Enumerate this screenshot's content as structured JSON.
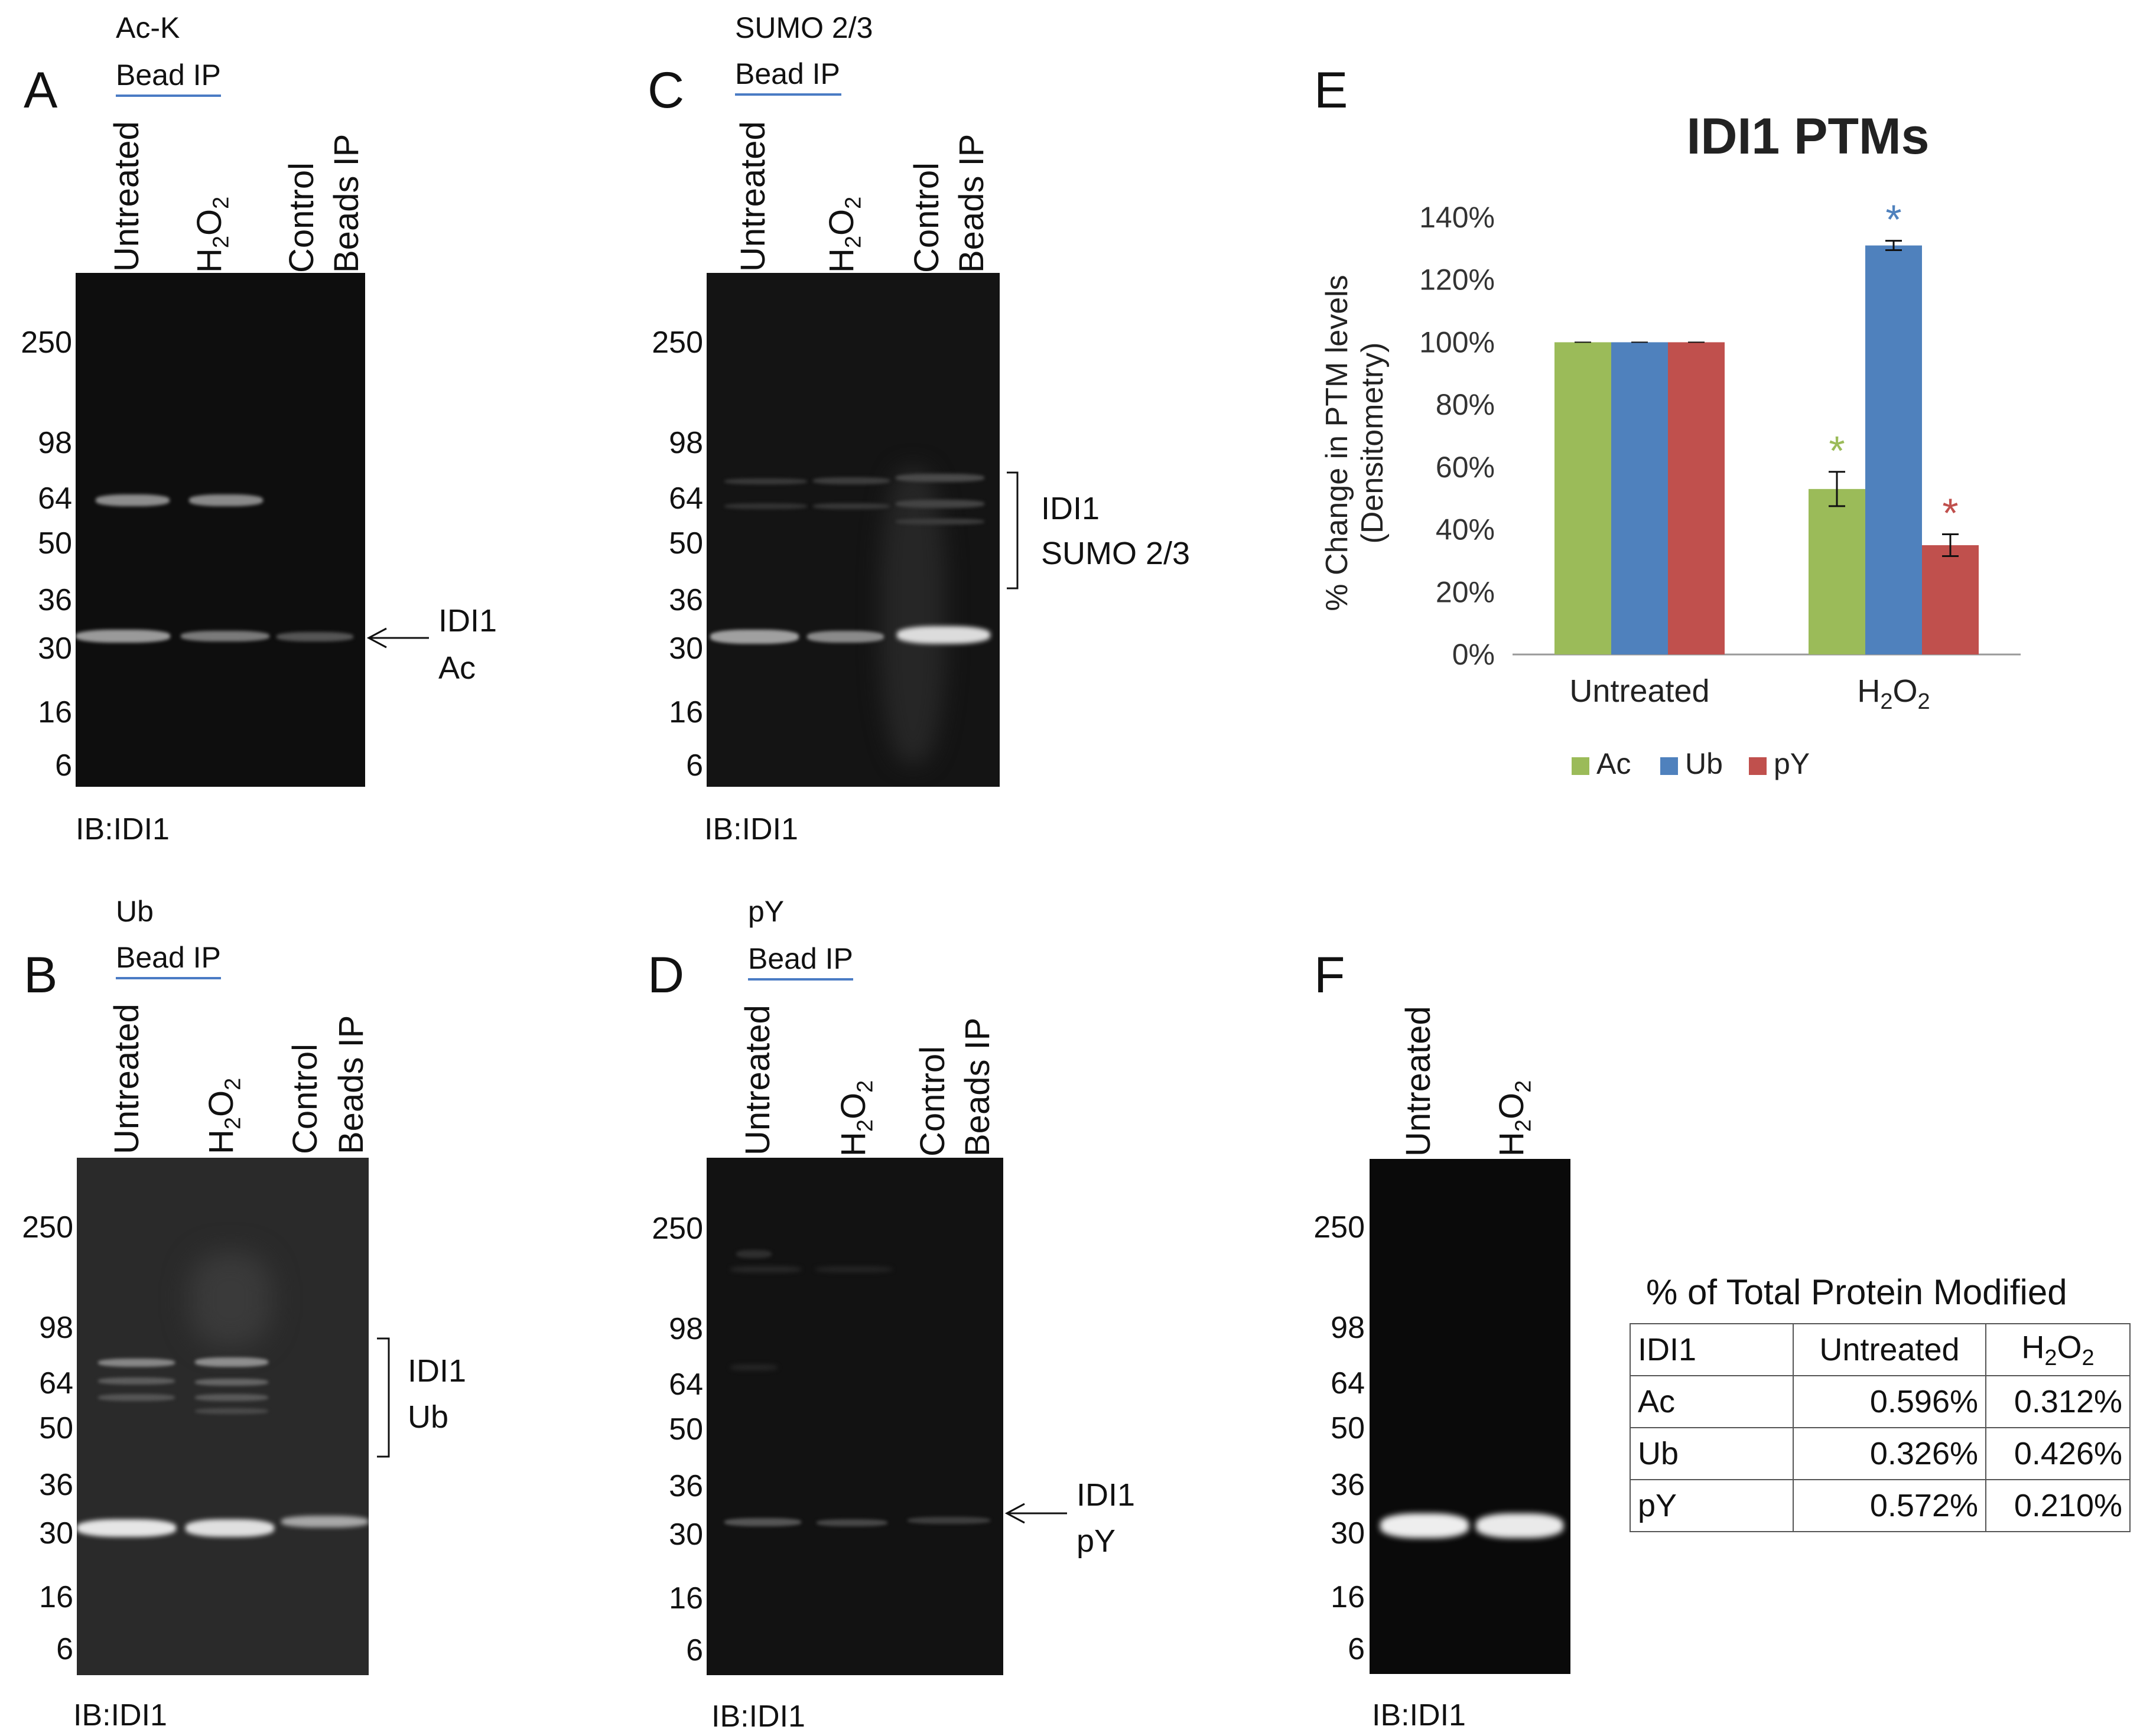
{
  "panels": {
    "A": {
      "letter": "A",
      "ip_line1": "Ac-K",
      "ip_line2": "Bead IP",
      "lanes": [
        "Untreated",
        "H2O2",
        "Control",
        "Beads IP"
      ],
      "mw": [
        "250",
        "98",
        "64",
        "50",
        "36",
        "30",
        "16",
        "6"
      ],
      "ib": "IB:IDI1",
      "ann1": "IDI1",
      "ann2": "Ac"
    },
    "B": {
      "letter": "B",
      "ip_line1": "Ub",
      "ip_line2": "Bead IP",
      "lanes": [
        "Untreated",
        "H2O2",
        "Control",
        "Beads IP"
      ],
      "mw": [
        "250",
        "98",
        "64",
        "50",
        "36",
        "30",
        "16",
        "6"
      ],
      "ib": "IB:IDI1",
      "ann1": "IDI1",
      "ann2": "Ub"
    },
    "C": {
      "letter": "C",
      "ip_line1": "SUMO 2/3",
      "ip_line2": "Bead IP",
      "lanes": [
        "Untreated",
        "H2O2",
        "Control",
        "Beads IP"
      ],
      "mw": [
        "250",
        "98",
        "64",
        "50",
        "36",
        "30",
        "16",
        "6"
      ],
      "ib": "IB:IDI1",
      "ann1": "IDI1",
      "ann2": "SUMO 2/3"
    },
    "D": {
      "letter": "D",
      "ip_line1": "pY",
      "ip_line2": "Bead IP",
      "lanes": [
        "Untreated",
        "H2O2",
        "Control",
        "Beads IP"
      ],
      "mw": [
        "250",
        "98",
        "64",
        "50",
        "36",
        "30",
        "16",
        "6"
      ],
      "ib": "IB:IDI1",
      "ann1": "IDI1",
      "ann2": "pY"
    },
    "E": {
      "letter": "E"
    },
    "F": {
      "letter": "F",
      "lanes": [
        "Untreated",
        "H2O2"
      ],
      "mw": [
        "250",
        "98",
        "64",
        "50",
        "36",
        "30",
        "16",
        "6"
      ],
      "ib": "IB:IDI1"
    }
  },
  "chart_data": {
    "type": "bar",
    "title": "IDI1 PTMs",
    "ylabel_line1": "% Change in PTM levels",
    "ylabel_line2": "(Densitometry)",
    "categories": [
      "Untreated",
      "H2O2"
    ],
    "yticks": [
      "0%",
      "20%",
      "40%",
      "60%",
      "80%",
      "100%",
      "120%",
      "140%"
    ],
    "ylim": [
      0,
      140
    ],
    "series": [
      {
        "name": "Ac",
        "color": "#9bbb59",
        "values": [
          100,
          53
        ],
        "errors": [
          0,
          5.5
        ]
      },
      {
        "name": "Ub",
        "color": "#4f81bd",
        "values": [
          100,
          131
        ],
        "errors": [
          0,
          1.5
        ]
      },
      {
        "name": "pY",
        "color": "#c0504d",
        "values": [
          100,
          35
        ],
        "errors": [
          0,
          3.5
        ]
      }
    ],
    "significance": [
      "*",
      "*",
      "*"
    ],
    "legend_position": "bottom"
  },
  "table": {
    "title": "% of Total Protein Modified",
    "header": [
      "IDI1",
      "Untreated",
      "H2O2"
    ],
    "rows": [
      [
        "Ac",
        "0.596%",
        "0.312%"
      ],
      [
        "Ub",
        "0.326%",
        "0.426%"
      ],
      [
        "pY",
        "0.572%",
        "0.210%"
      ]
    ]
  }
}
